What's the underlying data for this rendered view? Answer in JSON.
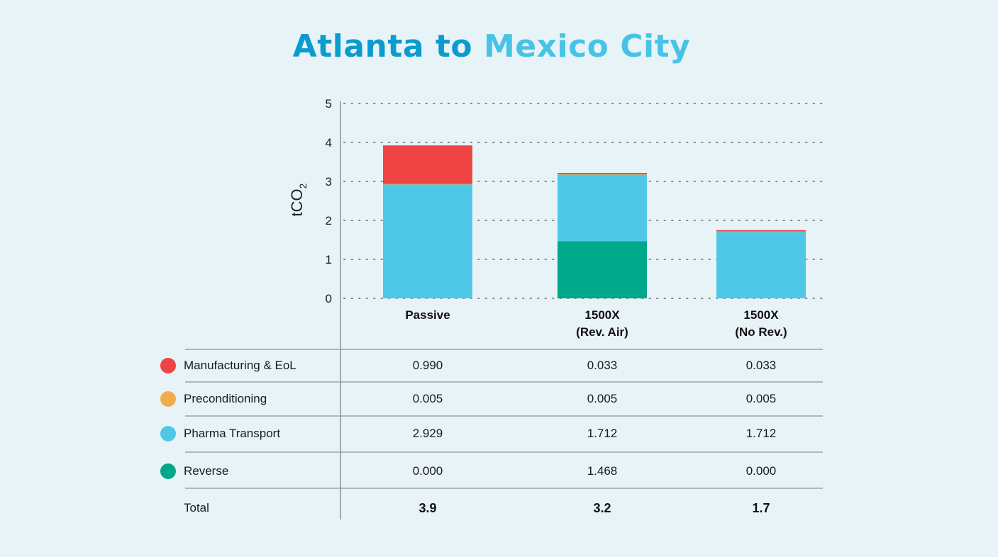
{
  "title_part1": "Atlanta to",
  "title_part2": "Mexico City",
  "chart_data": {
    "type": "bar",
    "stacked": true,
    "ylabel": "tCO",
    "ylabel_sub": "2",
    "ylim": [
      0,
      5
    ],
    "yticks": [
      0,
      1,
      2,
      3,
      4,
      5
    ],
    "grid": true,
    "categories": [
      [
        "Passive"
      ],
      [
        "1500X",
        "(Rev. Air)"
      ],
      [
        "1500X",
        "(No Rev.)"
      ]
    ],
    "series": [
      {
        "name": "Reverse",
        "color": "#00a88a",
        "values": [
          0.0,
          1.468,
          0.0
        ]
      },
      {
        "name": "Pharma Transport",
        "color": "#4fc8e8",
        "values": [
          2.929,
          1.712,
          1.712
        ]
      },
      {
        "name": "Preconditioning",
        "color": "#f0ad4a",
        "values": [
          0.005,
          0.005,
          0.005
        ]
      },
      {
        "name": "Manufacturing & EoL",
        "color": "#ef4444",
        "values": [
          0.99,
          0.033,
          0.033
        ]
      }
    ]
  },
  "table": {
    "rows": [
      {
        "label": "Manufacturing & EoL",
        "color": "#ef4444",
        "cells": [
          "0.990",
          "0.033",
          "0.033"
        ]
      },
      {
        "label": "Preconditioning",
        "color": "#f0ad4a",
        "cells": [
          "0.005",
          "0.005",
          "0.005"
        ]
      },
      {
        "label": "Pharma Transport",
        "color": "#4fc8e8",
        "cells": [
          "2.929",
          "1.712",
          "1.712"
        ]
      },
      {
        "label": "Reverse",
        "color": "#00a88a",
        "cells": [
          "0.000",
          "1.468",
          "0.000"
        ]
      }
    ],
    "total": {
      "label": "Total",
      "cells": [
        "3.9",
        "3.2",
        "1.7"
      ]
    }
  }
}
